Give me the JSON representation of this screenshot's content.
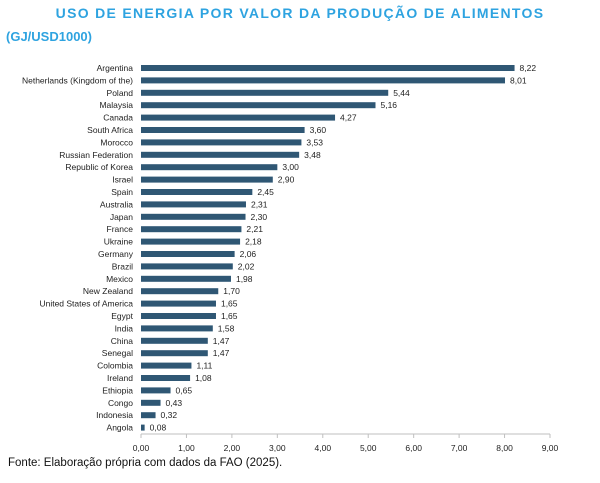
{
  "header": {
    "title": "USO DE ENERGIA POR VALOR DA PRODUÇÃO DE ALIMENTOS",
    "subtitle": "(GJ/USD1000)"
  },
  "footer": {
    "source": "Fonte: Elaboração própria com dados da FAO (2025)."
  },
  "colors": {
    "bar": "#2f5774",
    "title": "#2ea3e0"
  },
  "chart_data": {
    "type": "bar",
    "orientation": "horizontal",
    "title": "USO DE ENERGIA POR VALOR DA PRODUÇÃO DE ALIMENTOS",
    "subtitle": "(GJ/USD1000)",
    "xlim": [
      0,
      9
    ],
    "xticks": [
      "0,00",
      "1,00",
      "2,00",
      "3,00",
      "4,00",
      "5,00",
      "6,00",
      "7,00",
      "8,00",
      "9,00"
    ],
    "grid": false,
    "categories": [
      "Argentina",
      "Netherlands (Kingdom of the)",
      "Poland",
      "Malaysia",
      "Canada",
      "South Africa",
      "Morocco",
      "Russian Federation",
      "Republic of Korea",
      "Israel",
      "Spain",
      "Australia",
      "Japan",
      "France",
      "Ukraine",
      "Germany",
      "Brazil",
      "Mexico",
      "New Zealand",
      "United States of America",
      "Egypt",
      "India",
      "China",
      "Senegal",
      "Colombia",
      "Ireland",
      "Ethiopia",
      "Congo",
      "Indonesia",
      "Angola"
    ],
    "values": [
      8.22,
      8.01,
      5.44,
      5.16,
      4.27,
      3.6,
      3.53,
      3.48,
      3.0,
      2.9,
      2.45,
      2.31,
      2.3,
      2.21,
      2.18,
      2.06,
      2.02,
      1.98,
      1.7,
      1.65,
      1.65,
      1.58,
      1.47,
      1.47,
      1.11,
      1.08,
      0.65,
      0.43,
      0.32,
      0.08
    ],
    "value_labels": [
      "8,22",
      "8,01",
      "5,44",
      "5,16",
      "4,27",
      "3,60",
      "3,53",
      "3,48",
      "3,00",
      "2,90",
      "2,45",
      "2,31",
      "2,30",
      "2,21",
      "2,18",
      "2,06",
      "2,02",
      "1,98",
      "1,70",
      "1,65",
      "1,65",
      "1,58",
      "1,47",
      "1,47",
      "1,11",
      "1,08",
      "0,65",
      "0,43",
      "0,32",
      "0,08"
    ]
  }
}
